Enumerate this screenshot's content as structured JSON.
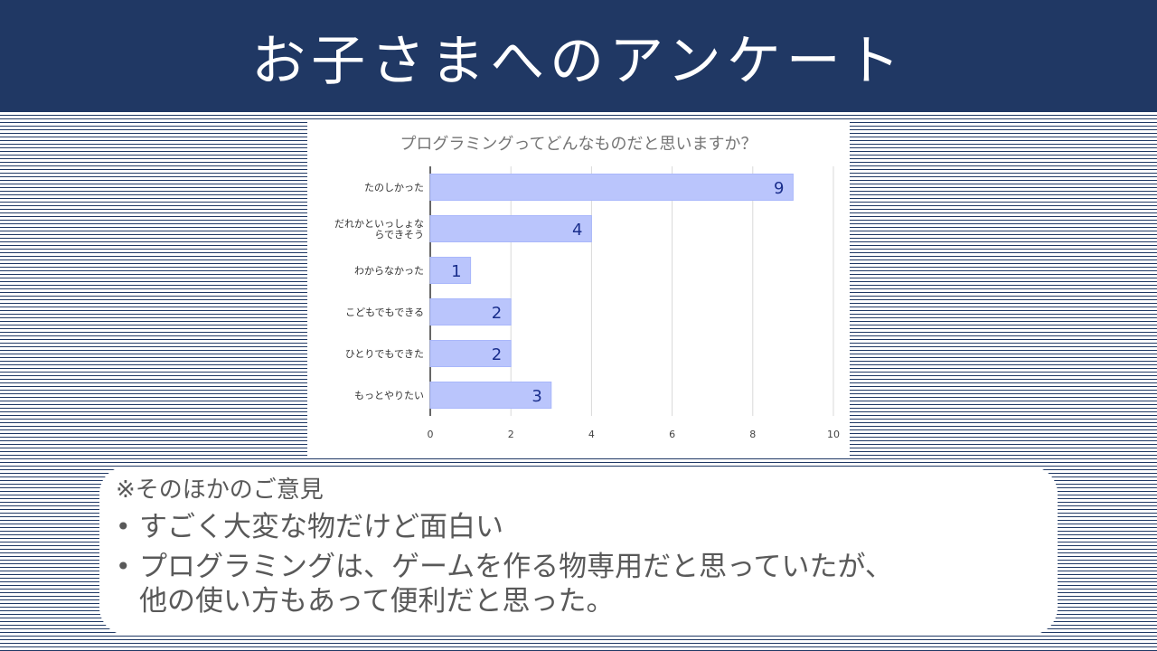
{
  "header": {
    "title": "お子さまへのアンケート"
  },
  "chart_data": {
    "type": "bar",
    "orientation": "horizontal",
    "title": "プログラミングってどんなものだと思いますか？",
    "categories": [
      "たのしかった",
      "だれかといっしょならできそう",
      "わからなかった",
      "こどもでもできる",
      "ひとりでもできた",
      "もっとやりたい"
    ],
    "category_lines": [
      [
        "たのしかった"
      ],
      [
        "だれかといっしょな",
        "らできそう"
      ],
      [
        "わからなかった"
      ],
      [
        "こどもでもできる"
      ],
      [
        "ひとりでもできた"
      ],
      [
        "もっとやりたい"
      ]
    ],
    "values": [
      9,
      4,
      1,
      2,
      2,
      3
    ],
    "xlim": [
      0,
      10
    ],
    "xticks": [
      "0",
      "2",
      "4",
      "6",
      "8",
      "10"
    ],
    "grid": true,
    "colors": {
      "bar": "#bac5fc",
      "bar_edge": "#a9b7fb",
      "label": "#1a2e8c",
      "grid": "#d9d9d9",
      "title": "#757575"
    }
  },
  "notes": {
    "heading": "※そのほかのご意見",
    "items": [
      {
        "lines": [
          "すごく大変な物だけど面白い"
        ]
      },
      {
        "lines": [
          "プログラミングは、ゲームを作る物専用だと思っていたが、",
          "他の使い方もあって便利だと思った。"
        ]
      }
    ]
  }
}
